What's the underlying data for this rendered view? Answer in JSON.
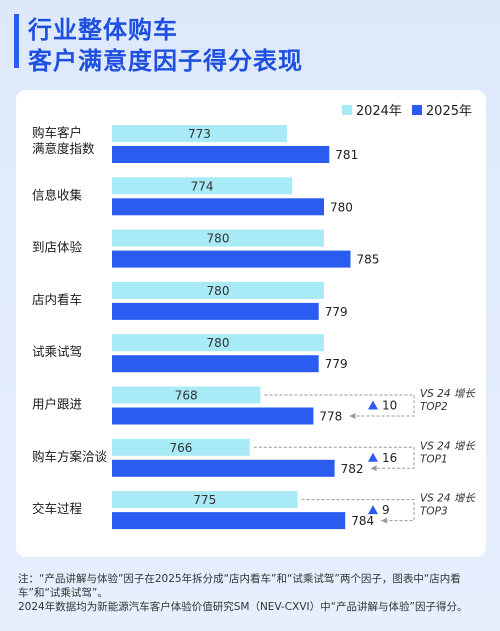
{
  "title": {
    "line1": "行业整体购车",
    "line2": "客户满意度因子得分表现"
  },
  "colors": {
    "s2024": "#a8eaf5",
    "s2025": "#2b5cf0",
    "accent": "#2b5cf0"
  },
  "chart_data": {
    "type": "bar",
    "orientation": "horizontal",
    "categories": [
      [
        "购车客户",
        "满意度指数"
      ],
      [
        "信息收集"
      ],
      [
        "到店体验"
      ],
      [
        "店内看车"
      ],
      [
        "试乘试驾"
      ],
      [
        "用户跟进"
      ],
      [
        "购车方案洽谈"
      ],
      [
        "交车过程"
      ]
    ],
    "series": [
      {
        "name": "2024年",
        "values": [
          773,
          774,
          780,
          780,
          780,
          768,
          766,
          775
        ]
      },
      {
        "name": "2025年",
        "values": [
          781,
          780,
          785,
          779,
          779,
          778,
          782,
          784
        ]
      }
    ],
    "legend_position": "top-right",
    "annotations": [
      {
        "category_index": 5,
        "delta": "10",
        "label": "VS 24 增长",
        "rank": "TOP2"
      },
      {
        "category_index": 6,
        "delta": "16",
        "label": "VS 24 增长",
        "rank": "TOP1"
      },
      {
        "category_index": 7,
        "delta": "9",
        "label": "VS 24 增长",
        "rank": "TOP3"
      }
    ]
  },
  "footnotes": {
    "note1": "注：“产品讲解与体验”因子在2025年拆分成“店内看车”和“试乘试驾”两个因子，图表中“店内看车”和“试乘试驾”。",
    "note2": "2024年数据均为新能源汽车客户体验价值研究SM（NEV-CXVI）中“产品讲解与体验”因子得分。"
  }
}
